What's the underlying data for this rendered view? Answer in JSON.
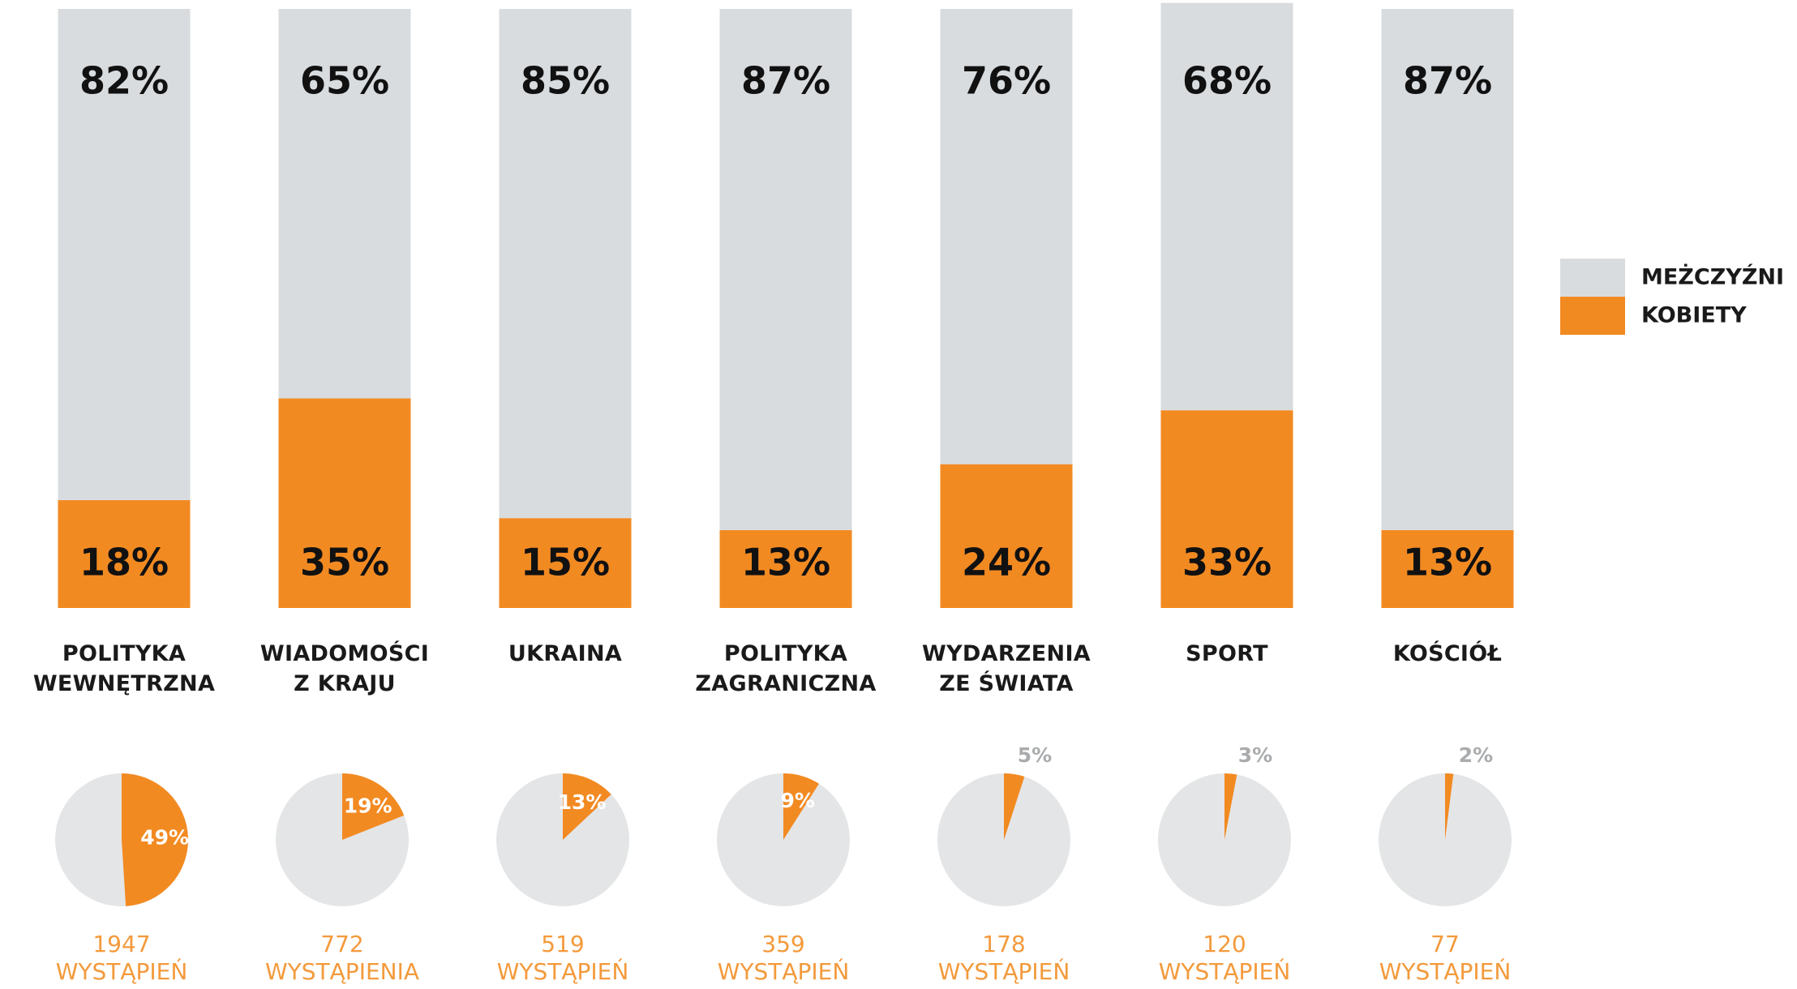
{
  "chart_data": [
    {
      "type": "bar",
      "stacked": true,
      "categories": [
        "POLITYKA\nWEWNĘTRZNA",
        "WIADOMOŚCI\nZ KRAJU",
        "UKRAINA",
        "POLITYKA\nZAGRANICZNA",
        "WYDARZENIA\nZE ŚWIATA",
        "SPORT",
        "KOŚCIÓŁ"
      ],
      "series": [
        {
          "name": "MEŻCZYŹNI",
          "color": "#d9dcdf",
          "values": [
            82,
            65,
            85,
            87,
            76,
            68,
            87
          ],
          "value_labels": [
            "82%",
            "65%",
            "85%",
            "87%",
            "76%",
            "68%",
            "87%"
          ]
        },
        {
          "name": "KOBIETY",
          "color": "#f28a22",
          "values": [
            18,
            35,
            15,
            13,
            24,
            33,
            13
          ],
          "value_labels": [
            "18%",
            "35%",
            "15%",
            "13%",
            "24%",
            "33%",
            "13%"
          ]
        }
      ],
      "ylim": [
        0,
        100
      ],
      "legend": "right"
    },
    {
      "type": "pie",
      "color": "#f28a22",
      "values": [
        49,
        19,
        13,
        9,
        5,
        3,
        2
      ],
      "value_labels": [
        "49%",
        "19%",
        "13%",
        "9%",
        "5%",
        "3%",
        "2%"
      ],
      "counts": [
        1947,
        772,
        519,
        359,
        178,
        120,
        77
      ],
      "count_labels": [
        "WYSTĄPIEŃ",
        "WYSTĄPIENIA",
        "WYSTĄPIEŃ",
        "WYSTĄPIEŃ",
        "WYSTĄPIEŃ",
        "WYSTĄPIEŃ",
        "WYSTĄPIEŃ"
      ]
    }
  ]
}
